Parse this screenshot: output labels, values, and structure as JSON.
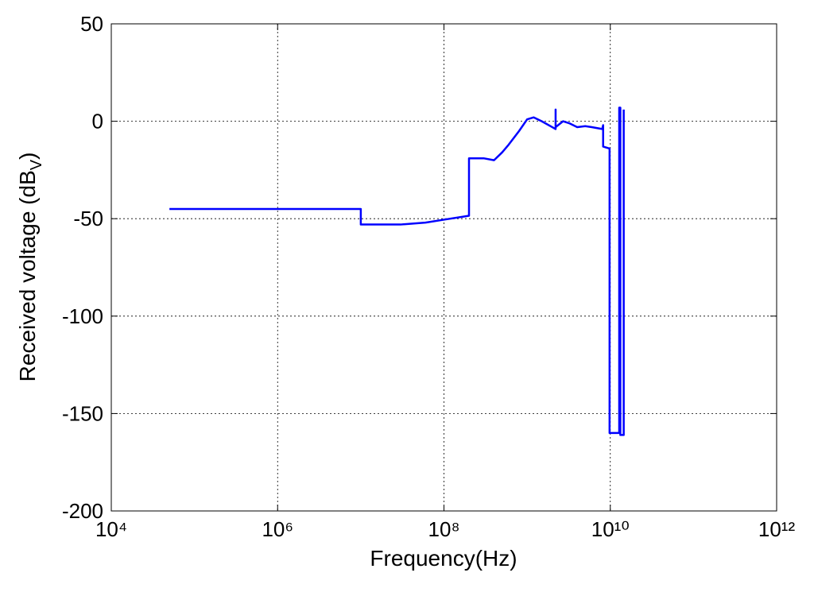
{
  "chart_data": {
    "type": "line",
    "xlabel": "Frequency(Hz)",
    "ylabel": {
      "text": "Received voltage (dB",
      "subscript": "V",
      "suffix": ")"
    },
    "xscale": "log",
    "grid": true,
    "xlim": [
      10000,
      1000000000000
    ],
    "xticks": [
      {
        "value": 10000,
        "label": "10⁴"
      },
      {
        "value": 1000000,
        "label": "10⁶"
      },
      {
        "value": 100000000,
        "label": "10⁸"
      },
      {
        "value": 10000000000,
        "label": "10¹⁰"
      },
      {
        "value": 1000000000000,
        "label": "10¹²"
      }
    ],
    "ylim": [
      -200,
      50
    ],
    "yticks": [
      -200,
      -150,
      -100,
      -50,
      0,
      50
    ],
    "x": [
      50000,
      10000000,
      10000000,
      30000000,
      60000000,
      100000000,
      200000000,
      200000000,
      300000000,
      400000000,
      500000000,
      600000000,
      800000000,
      1000000000,
      1200000000,
      1500000000,
      2000000000,
      2200000000,
      2200000000,
      2200000000,
      2700000000,
      3200000000,
      4000000000,
      5000000000,
      6000000000,
      8000000000,
      8200000000,
      8200000000,
      9800000000,
      9800000000,
      12800000000,
      12800000000,
      13200000000,
      13200000000,
      14500000000,
      14500000000
    ],
    "series": [
      {
        "color": "#0000ff",
        "values": [
          -45,
          -45,
          -53,
          -53,
          -52,
          -50.5,
          -48.5,
          -19,
          -19,
          -20,
          -16,
          -12,
          -5,
          1,
          2,
          0,
          -3,
          -4,
          6,
          -3,
          0,
          -1,
          -3,
          -2.5,
          -3,
          -4,
          -2,
          -13,
          -14,
          -160,
          -160,
          7,
          7,
          -161,
          -161,
          6
        ]
      }
    ]
  }
}
